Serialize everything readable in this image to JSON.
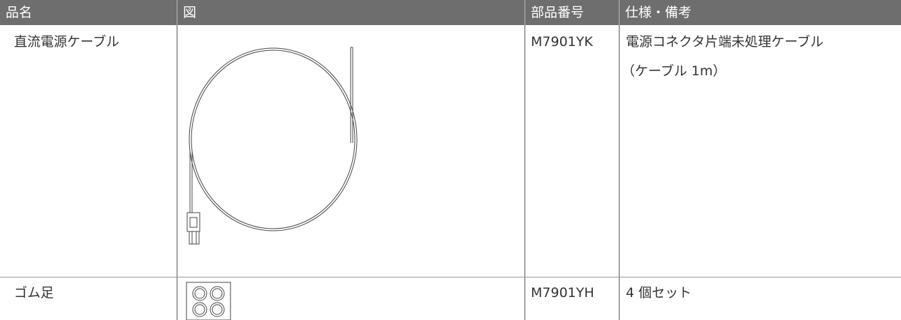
{
  "table": {
    "header": [
      "品名",
      "図",
      "部品番号",
      "仕様・備考"
    ],
    "rows": [
      {
        "name": "直流電源ケーブル",
        "part_number": "M7901YK",
        "notes": [
          "電源コネクタ片端未処理ケーブル",
          "（ケーブル 1m）"
        ]
      },
      {
        "name": "ゴム足",
        "part_number": "M7901YH",
        "notes": [
          "4 個セット"
        ]
      }
    ]
  }
}
